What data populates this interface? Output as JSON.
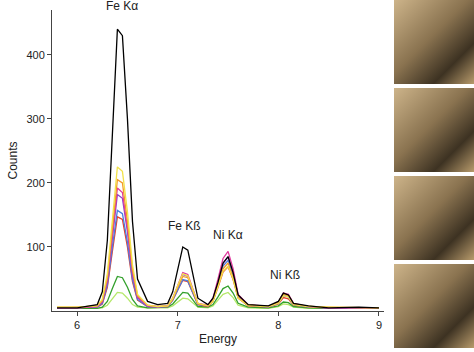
{
  "chart_data": {
    "type": "line",
    "x_label": "Energy",
    "y_label": "Counts",
    "xlim": [
      5.75,
      9.05
    ],
    "xticks": [
      6,
      7,
      8,
      9
    ],
    "ylim": [
      0,
      470
    ],
    "yticks": [
      100,
      200,
      300,
      400
    ],
    "grid": false,
    "x": [
      5.8,
      6.0,
      6.2,
      6.25,
      6.3,
      6.35,
      6.4,
      6.45,
      6.5,
      6.55,
      6.6,
      6.7,
      6.8,
      6.9,
      6.95,
      7.0,
      7.05,
      7.1,
      7.15,
      7.2,
      7.3,
      7.35,
      7.4,
      7.45,
      7.5,
      7.55,
      7.6,
      7.7,
      7.9,
      8.0,
      8.05,
      8.1,
      8.15,
      8.3,
      8.5,
      8.8,
      9.0
    ],
    "series": [
      {
        "color": "#b5e86a",
        "values": [
          4,
          4,
          4,
          5,
          9,
          19,
          29,
          28,
          20,
          10,
          6,
          5,
          5,
          5,
          8,
          14,
          20,
          19,
          12,
          6,
          5,
          8,
          17,
          26,
          29,
          21,
          9,
          5,
          4,
          7,
          11,
          10,
          6,
          4,
          4,
          4,
          4
        ]
      },
      {
        "color": "#33a02c",
        "values": [
          4,
          4,
          4,
          6,
          15,
          35,
          54,
          52,
          37,
          18,
          8,
          5,
          5,
          6,
          11,
          20,
          29,
          28,
          17,
          7,
          6,
          10,
          22,
          35,
          39,
          28,
          12,
          6,
          5,
          8,
          14,
          13,
          7,
          5,
          4,
          4,
          4
        ]
      },
      {
        "color": "#e8402a",
        "values": [
          5,
          5,
          6,
          11,
          37,
          93,
          147,
          143,
          100,
          46,
          17,
          7,
          6,
          7,
          17,
          33,
          48,
          46,
          27,
          10,
          7,
          15,
          37,
          61,
          69,
          49,
          20,
          8,
          6,
          11,
          21,
          19,
          9,
          6,
          5,
          5,
          5
        ]
      },
      {
        "color": "#4a7fe0",
        "values": [
          5,
          5,
          6,
          12,
          40,
          100,
          157,
          152,
          107,
          49,
          18,
          7,
          6,
          7,
          17,
          33,
          49,
          47,
          27,
          10,
          8,
          17,
          43,
          70,
          79,
          56,
          22,
          9,
          6,
          12,
          24,
          22,
          10,
          6,
          5,
          5,
          5
        ]
      },
      {
        "color": "#8e44c8",
        "values": [
          5,
          5,
          7,
          14,
          46,
          116,
          182,
          176,
          124,
          57,
          21,
          8,
          6,
          8,
          19,
          38,
          57,
          54,
          31,
          11,
          8,
          18,
          45,
          74,
          84,
          60,
          24,
          9,
          7,
          13,
          26,
          24,
          11,
          7,
          5,
          5,
          5
        ]
      },
      {
        "color": "#e0399e",
        "values": [
          5,
          5,
          7,
          15,
          48,
          122,
          192,
          185,
          130,
          60,
          22,
          8,
          7,
          8,
          20,
          40,
          60,
          57,
          33,
          12,
          9,
          20,
          50,
          82,
          93,
          66,
          26,
          10,
          7,
          14,
          28,
          26,
          12,
          7,
          5,
          5,
          5
        ]
      },
      {
        "color": "#f39a2b",
        "values": [
          6,
          6,
          8,
          16,
          52,
          132,
          205,
          200,
          140,
          65,
          24,
          9,
          7,
          8,
          18,
          37,
          54,
          52,
          30,
          11,
          8,
          16,
          40,
          66,
          75,
          52,
          21,
          9,
          7,
          13,
          26,
          24,
          11,
          7,
          6,
          5,
          5
        ]
      },
      {
        "color": "#f2e24a",
        "values": [
          6,
          6,
          8,
          18,
          58,
          145,
          225,
          218,
          155,
          72,
          26,
          9,
          7,
          8,
          20,
          40,
          58,
          55,
          32,
          12,
          8,
          15,
          38,
          62,
          70,
          50,
          20,
          9,
          7,
          12,
          24,
          22,
          10,
          7,
          6,
          5,
          5
        ]
      },
      {
        "color": "#000000",
        "values": [
          5,
          5,
          10,
          30,
          110,
          280,
          440,
          430,
          300,
          140,
          50,
          15,
          10,
          12,
          30,
          65,
          100,
          95,
          55,
          20,
          10,
          20,
          45,
          75,
          85,
          60,
          25,
          10,
          8,
          15,
          28,
          25,
          12,
          8,
          5,
          6,
          5
        ]
      }
    ],
    "annotations": [
      {
        "text": "Fe Kα",
        "x": 6.45,
        "y": 462
      },
      {
        "text": "Fe Kß",
        "x": 7.07,
        "y": 118
      },
      {
        "text": "Ni Kα",
        "x": 7.5,
        "y": 105
      },
      {
        "text": "Ni Kß",
        "x": 8.07,
        "y": 42
      }
    ]
  }
}
